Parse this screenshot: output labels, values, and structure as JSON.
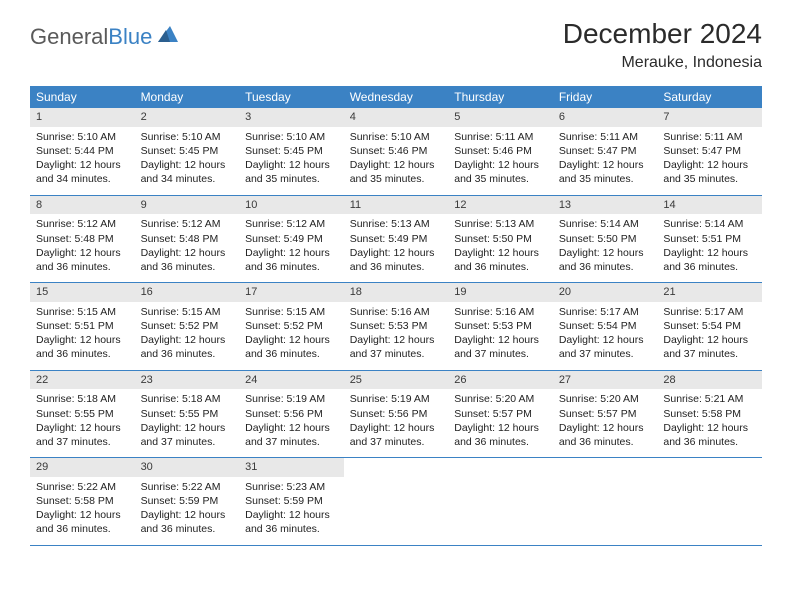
{
  "logo": {
    "part1": "General",
    "part2": "Blue"
  },
  "title": "December 2024",
  "location": "Merauke, Indonesia",
  "colors": {
    "header_bg": "#3b82c4",
    "header_text": "#ffffff",
    "daynum_bg": "#e8e8e8",
    "row_border": "#3b82c4",
    "logo_gray": "#5a5a5a",
    "logo_blue": "#3b82c4"
  },
  "day_names": [
    "Sunday",
    "Monday",
    "Tuesday",
    "Wednesday",
    "Thursday",
    "Friday",
    "Saturday"
  ],
  "weeks": [
    [
      {
        "n": "1",
        "sr": "Sunrise: 5:10 AM",
        "ss": "Sunset: 5:44 PM",
        "d1": "Daylight: 12 hours",
        "d2": "and 34 minutes."
      },
      {
        "n": "2",
        "sr": "Sunrise: 5:10 AM",
        "ss": "Sunset: 5:45 PM",
        "d1": "Daylight: 12 hours",
        "d2": "and 34 minutes."
      },
      {
        "n": "3",
        "sr": "Sunrise: 5:10 AM",
        "ss": "Sunset: 5:45 PM",
        "d1": "Daylight: 12 hours",
        "d2": "and 35 minutes."
      },
      {
        "n": "4",
        "sr": "Sunrise: 5:10 AM",
        "ss": "Sunset: 5:46 PM",
        "d1": "Daylight: 12 hours",
        "d2": "and 35 minutes."
      },
      {
        "n": "5",
        "sr": "Sunrise: 5:11 AM",
        "ss": "Sunset: 5:46 PM",
        "d1": "Daylight: 12 hours",
        "d2": "and 35 minutes."
      },
      {
        "n": "6",
        "sr": "Sunrise: 5:11 AM",
        "ss": "Sunset: 5:47 PM",
        "d1": "Daylight: 12 hours",
        "d2": "and 35 minutes."
      },
      {
        "n": "7",
        "sr": "Sunrise: 5:11 AM",
        "ss": "Sunset: 5:47 PM",
        "d1": "Daylight: 12 hours",
        "d2": "and 35 minutes."
      }
    ],
    [
      {
        "n": "8",
        "sr": "Sunrise: 5:12 AM",
        "ss": "Sunset: 5:48 PM",
        "d1": "Daylight: 12 hours",
        "d2": "and 36 minutes."
      },
      {
        "n": "9",
        "sr": "Sunrise: 5:12 AM",
        "ss": "Sunset: 5:48 PM",
        "d1": "Daylight: 12 hours",
        "d2": "and 36 minutes."
      },
      {
        "n": "10",
        "sr": "Sunrise: 5:12 AM",
        "ss": "Sunset: 5:49 PM",
        "d1": "Daylight: 12 hours",
        "d2": "and 36 minutes."
      },
      {
        "n": "11",
        "sr": "Sunrise: 5:13 AM",
        "ss": "Sunset: 5:49 PM",
        "d1": "Daylight: 12 hours",
        "d2": "and 36 minutes."
      },
      {
        "n": "12",
        "sr": "Sunrise: 5:13 AM",
        "ss": "Sunset: 5:50 PM",
        "d1": "Daylight: 12 hours",
        "d2": "and 36 minutes."
      },
      {
        "n": "13",
        "sr": "Sunrise: 5:14 AM",
        "ss": "Sunset: 5:50 PM",
        "d1": "Daylight: 12 hours",
        "d2": "and 36 minutes."
      },
      {
        "n": "14",
        "sr": "Sunrise: 5:14 AM",
        "ss": "Sunset: 5:51 PM",
        "d1": "Daylight: 12 hours",
        "d2": "and 36 minutes."
      }
    ],
    [
      {
        "n": "15",
        "sr": "Sunrise: 5:15 AM",
        "ss": "Sunset: 5:51 PM",
        "d1": "Daylight: 12 hours",
        "d2": "and 36 minutes."
      },
      {
        "n": "16",
        "sr": "Sunrise: 5:15 AM",
        "ss": "Sunset: 5:52 PM",
        "d1": "Daylight: 12 hours",
        "d2": "and 36 minutes."
      },
      {
        "n": "17",
        "sr": "Sunrise: 5:15 AM",
        "ss": "Sunset: 5:52 PM",
        "d1": "Daylight: 12 hours",
        "d2": "and 36 minutes."
      },
      {
        "n": "18",
        "sr": "Sunrise: 5:16 AM",
        "ss": "Sunset: 5:53 PM",
        "d1": "Daylight: 12 hours",
        "d2": "and 37 minutes."
      },
      {
        "n": "19",
        "sr": "Sunrise: 5:16 AM",
        "ss": "Sunset: 5:53 PM",
        "d1": "Daylight: 12 hours",
        "d2": "and 37 minutes."
      },
      {
        "n": "20",
        "sr": "Sunrise: 5:17 AM",
        "ss": "Sunset: 5:54 PM",
        "d1": "Daylight: 12 hours",
        "d2": "and 37 minutes."
      },
      {
        "n": "21",
        "sr": "Sunrise: 5:17 AM",
        "ss": "Sunset: 5:54 PM",
        "d1": "Daylight: 12 hours",
        "d2": "and 37 minutes."
      }
    ],
    [
      {
        "n": "22",
        "sr": "Sunrise: 5:18 AM",
        "ss": "Sunset: 5:55 PM",
        "d1": "Daylight: 12 hours",
        "d2": "and 37 minutes."
      },
      {
        "n": "23",
        "sr": "Sunrise: 5:18 AM",
        "ss": "Sunset: 5:55 PM",
        "d1": "Daylight: 12 hours",
        "d2": "and 37 minutes."
      },
      {
        "n": "24",
        "sr": "Sunrise: 5:19 AM",
        "ss": "Sunset: 5:56 PM",
        "d1": "Daylight: 12 hours",
        "d2": "and 37 minutes."
      },
      {
        "n": "25",
        "sr": "Sunrise: 5:19 AM",
        "ss": "Sunset: 5:56 PM",
        "d1": "Daylight: 12 hours",
        "d2": "and 37 minutes."
      },
      {
        "n": "26",
        "sr": "Sunrise: 5:20 AM",
        "ss": "Sunset: 5:57 PM",
        "d1": "Daylight: 12 hours",
        "d2": "and 36 minutes."
      },
      {
        "n": "27",
        "sr": "Sunrise: 5:20 AM",
        "ss": "Sunset: 5:57 PM",
        "d1": "Daylight: 12 hours",
        "d2": "and 36 minutes."
      },
      {
        "n": "28",
        "sr": "Sunrise: 5:21 AM",
        "ss": "Sunset: 5:58 PM",
        "d1": "Daylight: 12 hours",
        "d2": "and 36 minutes."
      }
    ],
    [
      {
        "n": "29",
        "sr": "Sunrise: 5:22 AM",
        "ss": "Sunset: 5:58 PM",
        "d1": "Daylight: 12 hours",
        "d2": "and 36 minutes."
      },
      {
        "n": "30",
        "sr": "Sunrise: 5:22 AM",
        "ss": "Sunset: 5:59 PM",
        "d1": "Daylight: 12 hours",
        "d2": "and 36 minutes."
      },
      {
        "n": "31",
        "sr": "Sunrise: 5:23 AM",
        "ss": "Sunset: 5:59 PM",
        "d1": "Daylight: 12 hours",
        "d2": "and 36 minutes."
      },
      null,
      null,
      null,
      null
    ]
  ]
}
